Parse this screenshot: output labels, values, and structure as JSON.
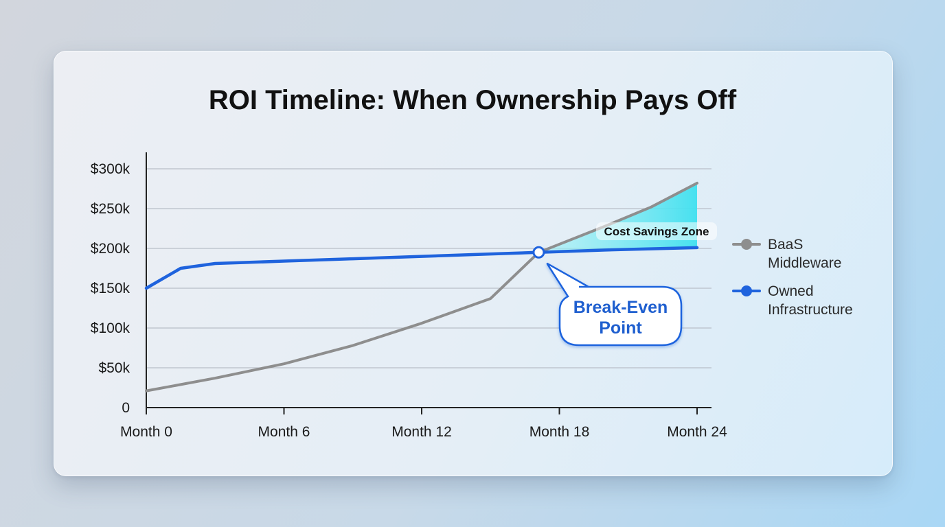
{
  "chart_data": {
    "type": "line",
    "title": "ROI Timeline: When Ownership Pays Off",
    "x_ticks": [
      {
        "value": 0,
        "label": "Month 0"
      },
      {
        "value": 6,
        "label": "Month 6"
      },
      {
        "value": 12,
        "label": "Month 12"
      },
      {
        "value": 18,
        "label": "Month 18"
      },
      {
        "value": 24,
        "label": "Month 24"
      }
    ],
    "y_ticks": [
      {
        "value": 0,
        "label": "0"
      },
      {
        "value": 50,
        "label": "$50k"
      },
      {
        "value": 100,
        "label": "$100k"
      },
      {
        "value": 150,
        "label": "$150k"
      },
      {
        "value": 200,
        "label": "$200k"
      },
      {
        "value": 250,
        "label": "$250k"
      },
      {
        "value": 300,
        "label": "$300k"
      }
    ],
    "xlim": [
      0,
      24
    ],
    "ylim": [
      0,
      300
    ],
    "grid": true,
    "legend_position": "right",
    "series": [
      {
        "name": "BaaS Middleware",
        "color": "#8e8e8e",
        "points": [
          [
            0,
            21
          ],
          [
            3,
            37
          ],
          [
            6,
            55
          ],
          [
            9,
            78
          ],
          [
            12,
            106
          ],
          [
            15,
            137
          ],
          [
            17.1,
            195
          ],
          [
            20,
            228
          ],
          [
            22,
            252
          ],
          [
            24,
            282
          ]
        ]
      },
      {
        "name": "Owned Infrastructure",
        "color": "#1f63dd",
        "points": [
          [
            0,
            150
          ],
          [
            1.5,
            175
          ],
          [
            3,
            181
          ],
          [
            6,
            184
          ],
          [
            9,
            187
          ],
          [
            12,
            190
          ],
          [
            15,
            193
          ],
          [
            17.1,
            195
          ],
          [
            20,
            198
          ],
          [
            24,
            201
          ]
        ]
      }
    ],
    "annotations": {
      "zone_label": "Cost Savings Zone",
      "zone_color": "#3fe0ef",
      "callout_lines": [
        "Break-Even",
        "Point"
      ],
      "break_even": {
        "x": 17.1,
        "y": 195
      }
    }
  }
}
